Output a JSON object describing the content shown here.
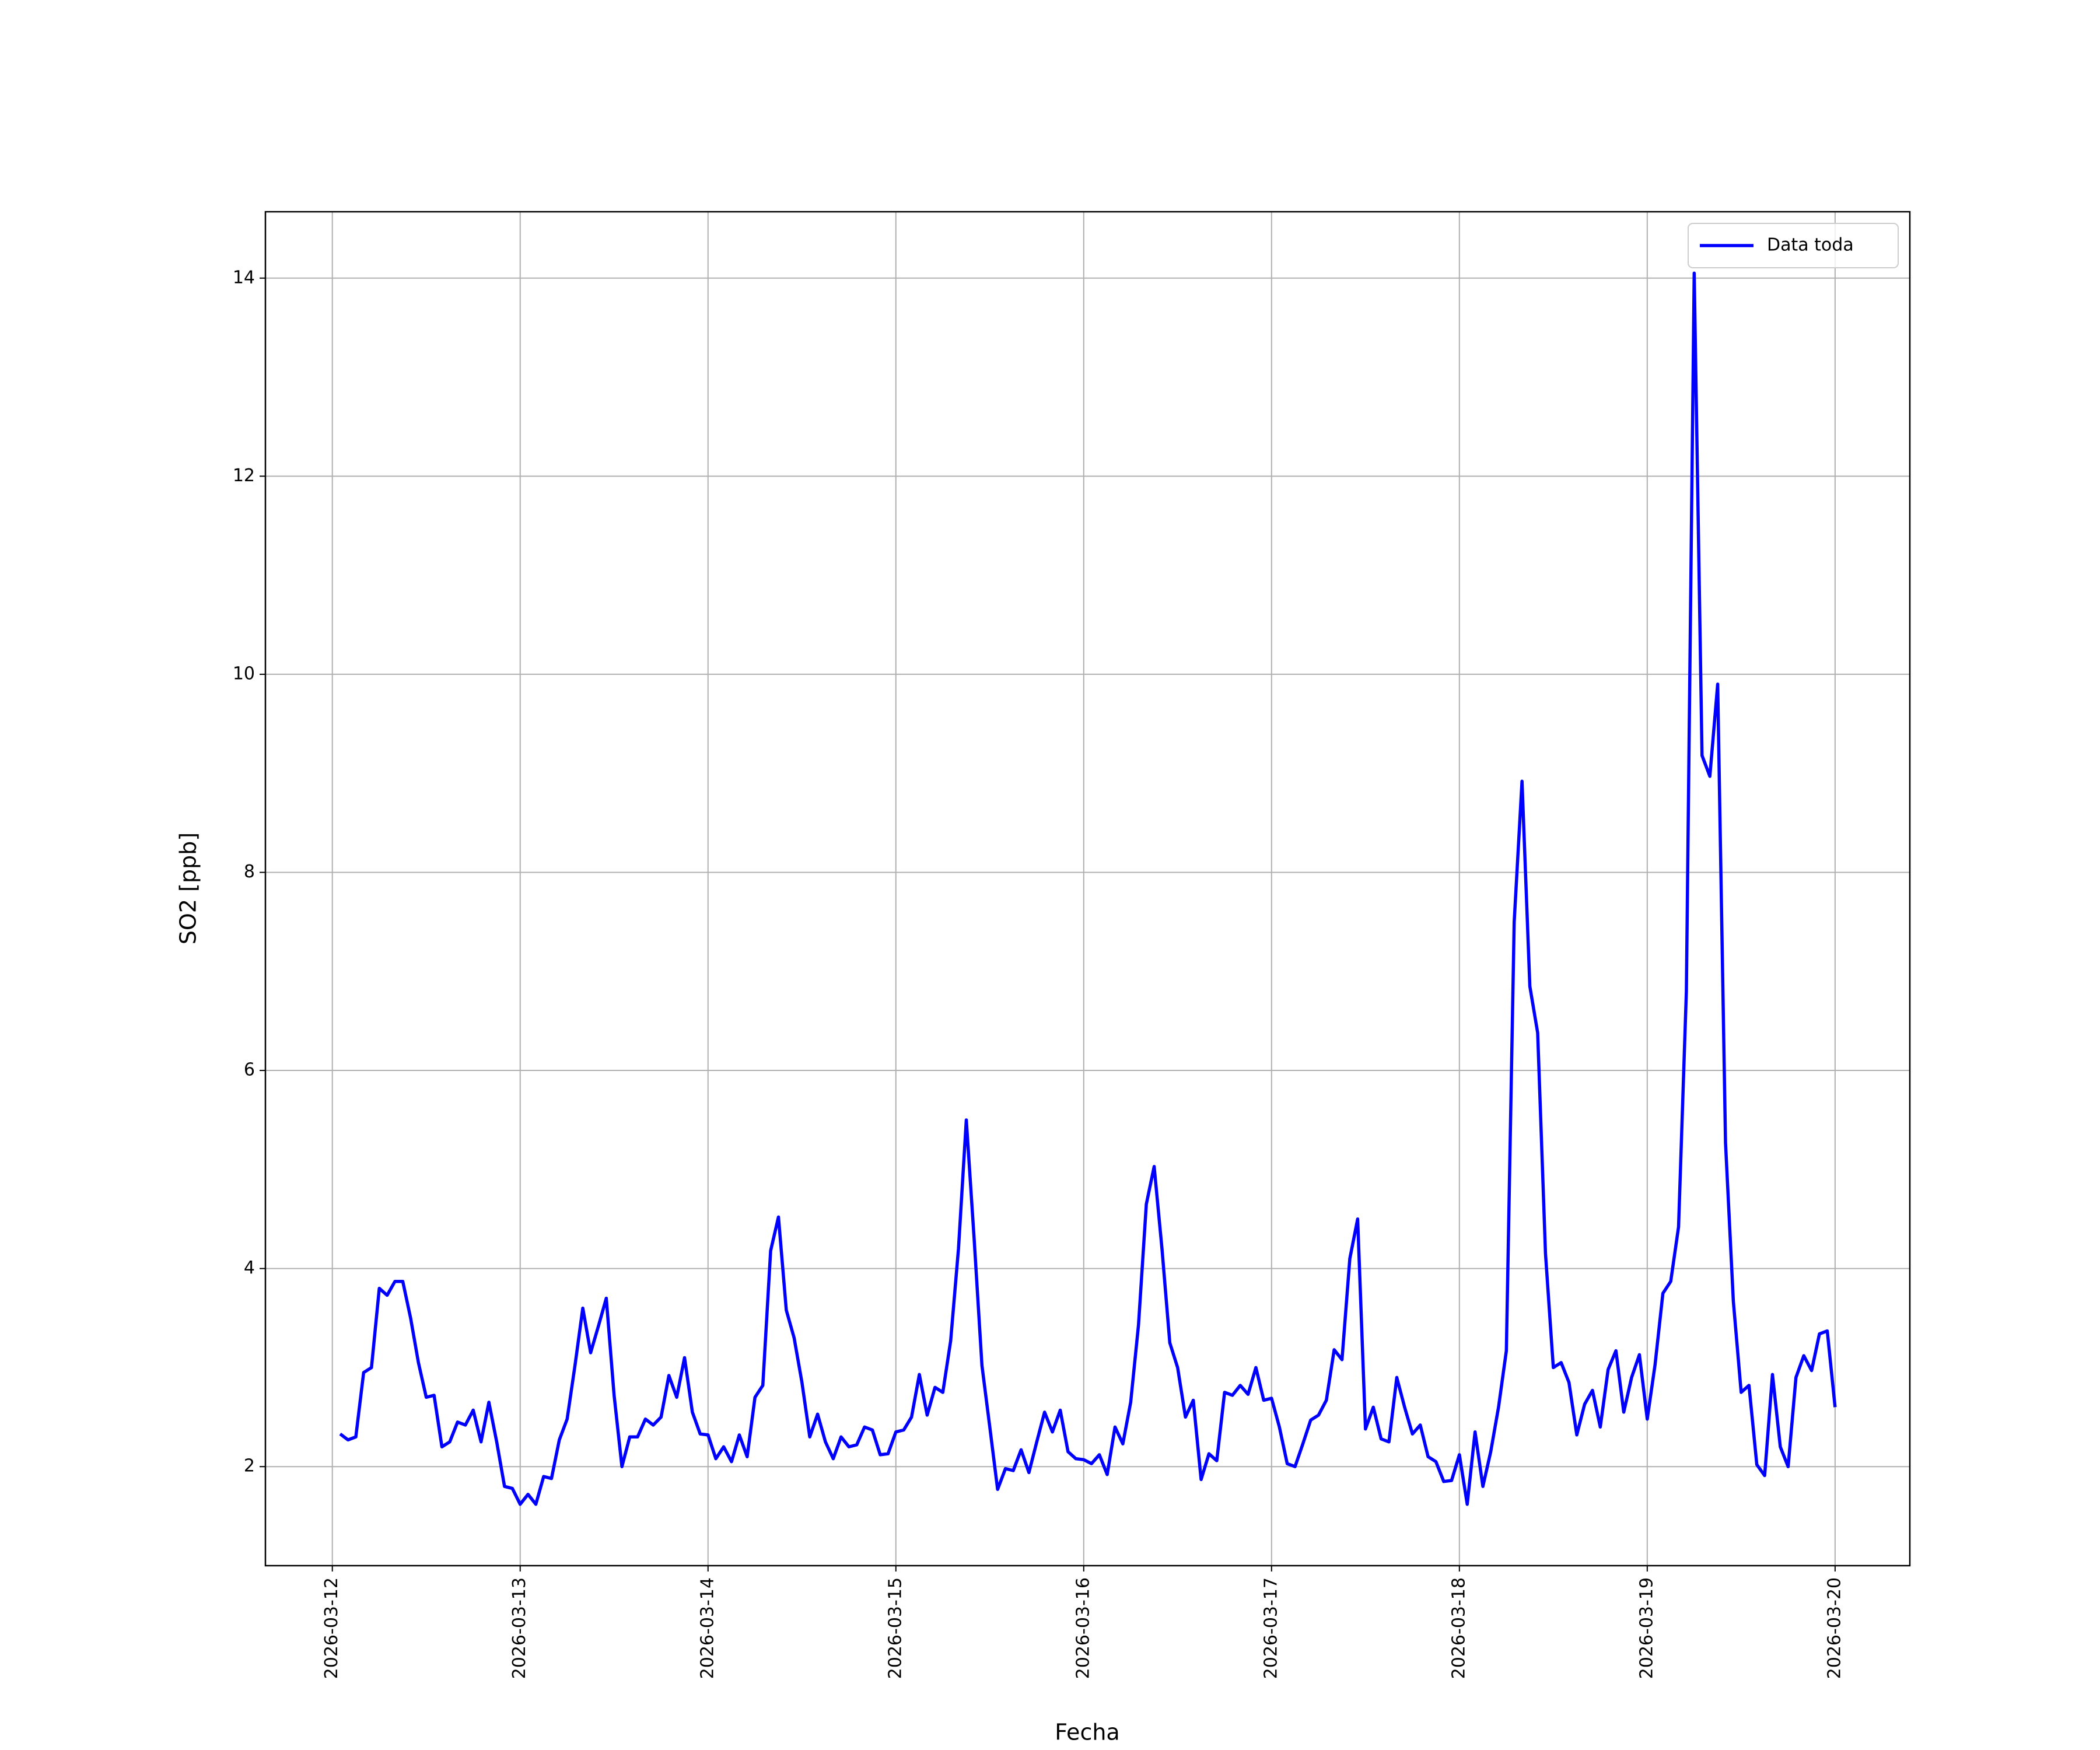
{
  "chart_data": {
    "type": "line",
    "xlabel": "Fecha",
    "ylabel": "SO2 [ppb]",
    "x": [
      "2026-03-12T01:00",
      "2026-03-12T02:00",
      "2026-03-12T03:00",
      "2026-03-12T04:00",
      "2026-03-12T05:00",
      "2026-03-12T06:00",
      "2026-03-12T07:00",
      "2026-03-12T08:00",
      "2026-03-12T09:00",
      "2026-03-12T10:00",
      "2026-03-12T11:00",
      "2026-03-12T12:00",
      "2026-03-12T13:00",
      "2026-03-12T14:00",
      "2026-03-12T15:00",
      "2026-03-12T16:00",
      "2026-03-12T17:00",
      "2026-03-12T18:00",
      "2026-03-12T19:00",
      "2026-03-12T20:00",
      "2026-03-12T21:00",
      "2026-03-12T22:00",
      "2026-03-12T23:00",
      "2026-03-13T00:00",
      "2026-03-13T01:00",
      "2026-03-13T02:00",
      "2026-03-13T03:00",
      "2026-03-13T04:00",
      "2026-03-13T05:00",
      "2026-03-13T06:00",
      "2026-03-13T07:00",
      "2026-03-13T08:00",
      "2026-03-13T09:00",
      "2026-03-13T10:00",
      "2026-03-13T11:00",
      "2026-03-13T12:00",
      "2026-03-13T13:00",
      "2026-03-13T14:00",
      "2026-03-13T15:00",
      "2026-03-13T16:00",
      "2026-03-13T17:00",
      "2026-03-13T18:00",
      "2026-03-13T19:00",
      "2026-03-13T20:00",
      "2026-03-13T21:00",
      "2026-03-13T22:00",
      "2026-03-13T23:00",
      "2026-03-14T00:00",
      "2026-03-14T01:00",
      "2026-03-14T02:00",
      "2026-03-14T03:00",
      "2026-03-14T04:00",
      "2026-03-14T05:00",
      "2026-03-14T06:00",
      "2026-03-14T07:00",
      "2026-03-14T08:00",
      "2026-03-14T09:00",
      "2026-03-14T10:00",
      "2026-03-14T11:00",
      "2026-03-14T12:00",
      "2026-03-14T13:00",
      "2026-03-14T14:00",
      "2026-03-14T15:00",
      "2026-03-14T16:00",
      "2026-03-14T17:00",
      "2026-03-14T18:00",
      "2026-03-14T19:00",
      "2026-03-14T20:00",
      "2026-03-14T21:00",
      "2026-03-14T22:00",
      "2026-03-14T23:00",
      "2026-03-15T00:00",
      "2026-03-15T01:00",
      "2026-03-15T02:00",
      "2026-03-15T03:00",
      "2026-03-15T04:00",
      "2026-03-15T05:00",
      "2026-03-15T06:00",
      "2026-03-15T07:00",
      "2026-03-15T08:00",
      "2026-03-15T09:00",
      "2026-03-15T10:00",
      "2026-03-15T11:00",
      "2026-03-15T12:00",
      "2026-03-15T13:00",
      "2026-03-15T14:00",
      "2026-03-15T15:00",
      "2026-03-15T16:00",
      "2026-03-15T17:00",
      "2026-03-15T18:00",
      "2026-03-15T19:00",
      "2026-03-15T20:00",
      "2026-03-15T21:00",
      "2026-03-15T22:00",
      "2026-03-15T23:00",
      "2026-03-16T00:00",
      "2026-03-16T01:00",
      "2026-03-16T02:00",
      "2026-03-16T03:00",
      "2026-03-16T04:00",
      "2026-03-16T05:00",
      "2026-03-16T06:00",
      "2026-03-16T07:00",
      "2026-03-16T08:00",
      "2026-03-16T09:00",
      "2026-03-16T10:00",
      "2026-03-16T11:00",
      "2026-03-16T12:00",
      "2026-03-16T13:00",
      "2026-03-16T14:00",
      "2026-03-16T15:00",
      "2026-03-16T16:00",
      "2026-03-16T17:00",
      "2026-03-16T18:00",
      "2026-03-16T19:00",
      "2026-03-16T20:00",
      "2026-03-16T21:00",
      "2026-03-16T22:00",
      "2026-03-16T23:00",
      "2026-03-17T00:00",
      "2026-03-17T01:00",
      "2026-03-17T02:00",
      "2026-03-17T03:00",
      "2026-03-17T04:00",
      "2026-03-17T05:00",
      "2026-03-17T06:00",
      "2026-03-17T07:00",
      "2026-03-17T08:00",
      "2026-03-17T09:00",
      "2026-03-17T10:00",
      "2026-03-17T11:00",
      "2026-03-17T12:00",
      "2026-03-17T13:00",
      "2026-03-17T14:00",
      "2026-03-17T15:00",
      "2026-03-17T16:00",
      "2026-03-17T17:00",
      "2026-03-17T18:00",
      "2026-03-17T19:00",
      "2026-03-17T20:00",
      "2026-03-17T21:00",
      "2026-03-17T22:00",
      "2026-03-17T23:00",
      "2026-03-18T00:00",
      "2026-03-18T01:00",
      "2026-03-18T02:00",
      "2026-03-18T03:00",
      "2026-03-18T04:00",
      "2026-03-18T05:00",
      "2026-03-18T06:00",
      "2026-03-18T07:00",
      "2026-03-18T08:00",
      "2026-03-18T09:00",
      "2026-03-18T10:00",
      "2026-03-18T11:00",
      "2026-03-18T12:00",
      "2026-03-18T13:00",
      "2026-03-18T14:00",
      "2026-03-18T15:00",
      "2026-03-18T16:00",
      "2026-03-18T17:00",
      "2026-03-18T18:00",
      "2026-03-18T19:00",
      "2026-03-18T20:00",
      "2026-03-18T21:00",
      "2026-03-18T22:00",
      "2026-03-18T23:00",
      "2026-03-19T00:00",
      "2026-03-19T01:00",
      "2026-03-19T02:00",
      "2026-03-19T03:00",
      "2026-03-19T04:00",
      "2026-03-19T05:00",
      "2026-03-19T06:00",
      "2026-03-19T07:00",
      "2026-03-19T08:00",
      "2026-03-19T09:00",
      "2026-03-19T10:00",
      "2026-03-19T11:00",
      "2026-03-19T12:00",
      "2026-03-19T13:00",
      "2026-03-19T14:00",
      "2026-03-19T15:00",
      "2026-03-19T16:00",
      "2026-03-19T17:00",
      "2026-03-19T18:00",
      "2026-03-19T19:00",
      "2026-03-19T20:00",
      "2026-03-19T21:00",
      "2026-03-19T22:00",
      "2026-03-19T23:00",
      "2026-03-20T00:00"
    ],
    "series": [
      {
        "name": "Data toda",
        "color": "#0000ff",
        "values": [
          2.33,
          2.27,
          2.3,
          2.95,
          3.0,
          3.8,
          3.73,
          3.87,
          3.87,
          3.5,
          3.05,
          2.7,
          2.72,
          2.2,
          2.25,
          2.45,
          2.42,
          2.57,
          2.25,
          2.65,
          2.25,
          1.8,
          1.78,
          1.62,
          1.72,
          1.62,
          1.9,
          1.88,
          2.27,
          2.48,
          3.02,
          3.6,
          3.15,
          3.42,
          3.7,
          2.72,
          2.0,
          2.3,
          2.3,
          2.48,
          2.42,
          2.5,
          2.92,
          2.7,
          3.1,
          2.55,
          2.33,
          2.32,
          2.08,
          2.2,
          2.05,
          2.32,
          2.1,
          2.7,
          2.82,
          4.18,
          4.52,
          3.58,
          3.3,
          2.85,
          2.3,
          2.53,
          2.25,
          2.08,
          2.3,
          2.2,
          2.22,
          2.4,
          2.37,
          2.12,
          2.13,
          2.35,
          2.37,
          2.5,
          2.93,
          2.52,
          2.8,
          2.75,
          3.27,
          4.2,
          5.5,
          4.3,
          3.02,
          2.4,
          1.77,
          1.98,
          1.96,
          2.17,
          1.94,
          2.25,
          2.55,
          2.35,
          2.57,
          2.15,
          2.08,
          2.07,
          2.03,
          2.12,
          1.92,
          2.4,
          2.23,
          2.65,
          3.43,
          4.65,
          5.03,
          4.2,
          3.25,
          3.0,
          2.5,
          2.67,
          1.87,
          2.13,
          2.06,
          2.75,
          2.72,
          2.82,
          2.73,
          3.0,
          2.67,
          2.69,
          2.4,
          2.03,
          2.0,
          2.23,
          2.47,
          2.52,
          2.67,
          3.18,
          3.08,
          4.1,
          4.5,
          2.38,
          2.6,
          2.28,
          2.25,
          2.9,
          2.6,
          2.33,
          2.42,
          2.1,
          2.05,
          1.85,
          1.86,
          2.12,
          1.62,
          2.35,
          1.8,
          2.15,
          2.6,
          3.17,
          7.5,
          8.92,
          6.85,
          6.38,
          4.15,
          3.0,
          3.05,
          2.85,
          2.32,
          2.63,
          2.77,
          2.4,
          2.98,
          3.17,
          2.55,
          2.9,
          3.13,
          2.48,
          3.03,
          3.75,
          3.87,
          4.42,
          6.8,
          14.05,
          9.18,
          8.97,
          9.9,
          5.27,
          3.67,
          2.75,
          2.82,
          2.02,
          1.91,
          2.93,
          2.2,
          2.0,
          2.9,
          3.12,
          2.97,
          3.34,
          3.37,
          2.6
        ]
      }
    ],
    "xlim": [
      "2026-03-11T15:27",
      "2026-03-20T09:33"
    ],
    "xticks": [
      "2026-03-12",
      "2026-03-13",
      "2026-03-14",
      "2026-03-15",
      "2026-03-16",
      "2026-03-17",
      "2026-03-18",
      "2026-03-19",
      "2026-03-20"
    ],
    "ylim": [
      1.0,
      14.67
    ],
    "yticks": [
      2,
      4,
      6,
      8,
      10,
      12,
      14
    ],
    "grid": true,
    "legend": "upper right"
  }
}
